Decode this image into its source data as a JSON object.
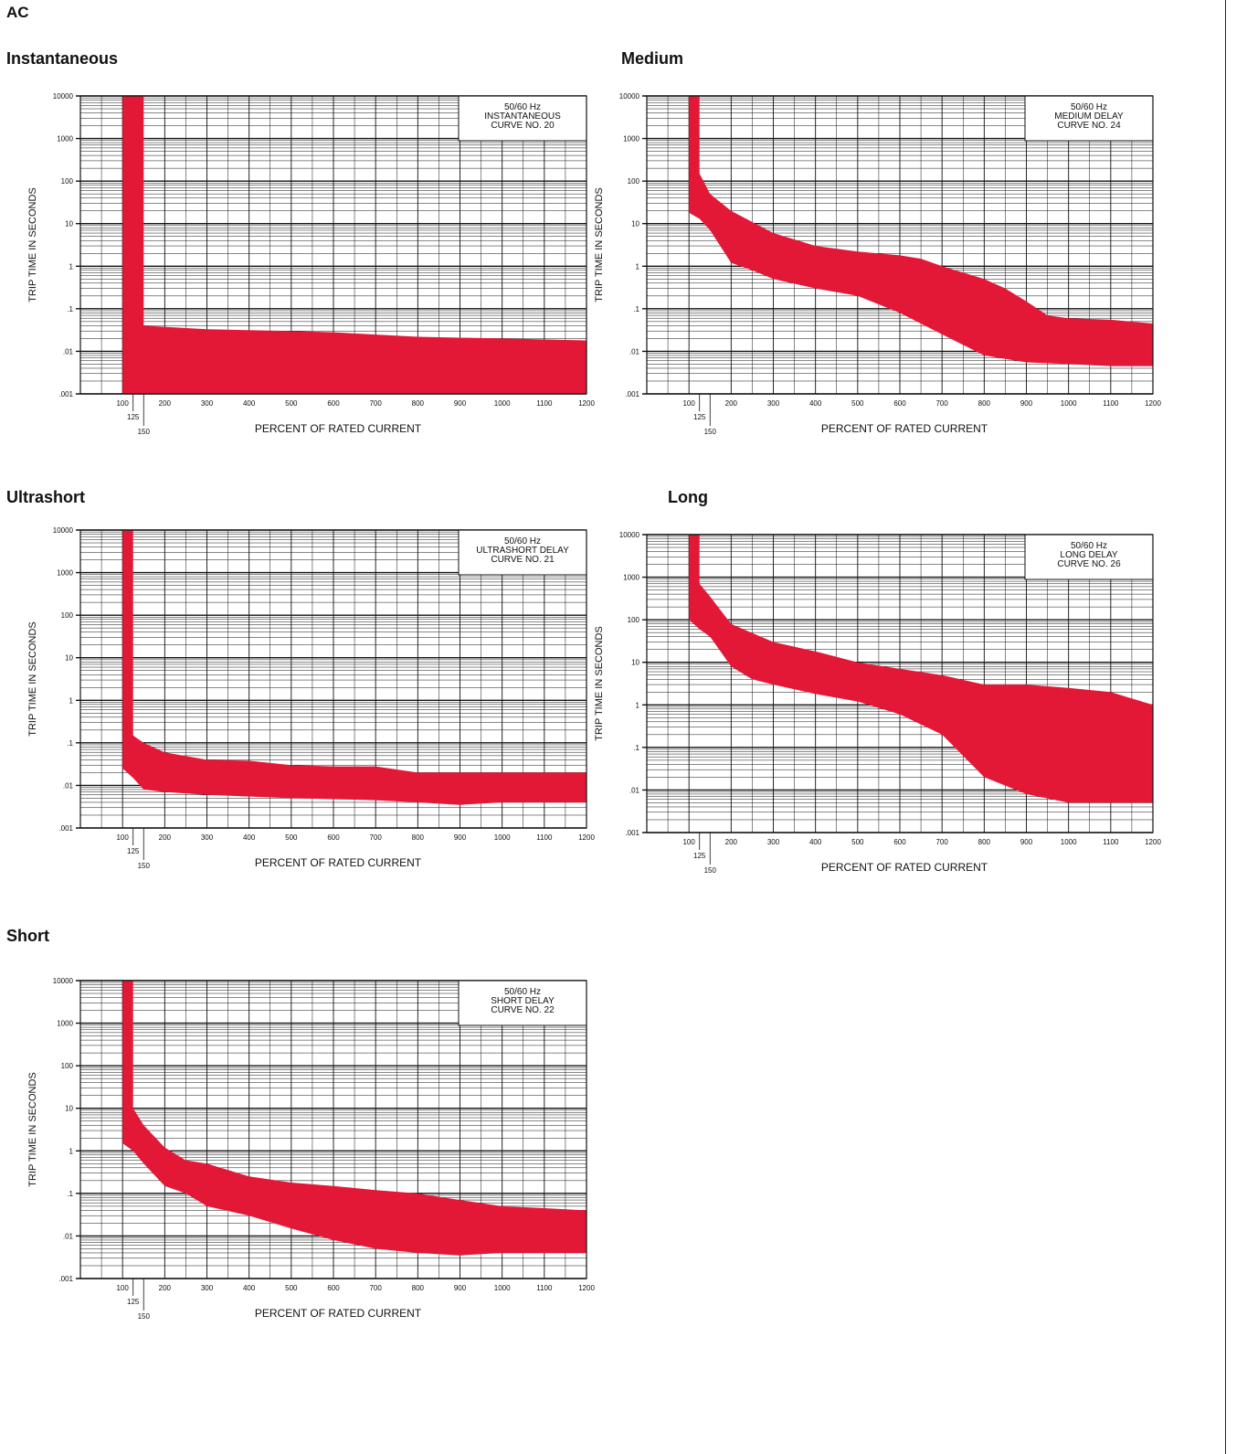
{
  "page": {
    "title": "AC"
  },
  "colors": {
    "band": "#e31837",
    "grid": "#111111",
    "background": "#ffffff"
  },
  "sections": [
    {
      "heading": "Instantaneous"
    },
    {
      "heading": "Medium"
    },
    {
      "heading": "Ultrashort"
    },
    {
      "heading": "Long"
    },
    {
      "heading": "Short"
    }
  ],
  "chart_data": [
    {
      "type": "area",
      "legend_box": [
        "50/60 Hz",
        "INSTANTANEOUS",
        "CURVE NO. 20"
      ],
      "xlabel": "PERCENT OF RATED CURRENT",
      "ylabel": "TRIP TIME IN SECONDS",
      "xlim": [
        0,
        1200
      ],
      "ylim": [
        0.001,
        10000
      ],
      "yscale": "log",
      "x_ticks": [
        "100",
        "125",
        "150",
        "200",
        "300",
        "400",
        "500",
        "600",
        "700",
        "800",
        "900",
        "1000",
        "1100",
        "1200"
      ],
      "y_ticks": [
        "10000",
        "1000",
        "100",
        "10",
        "1",
        ".1",
        ".01",
        ".001"
      ],
      "legend_position": "top-right",
      "grid": true,
      "series": [
        {
          "upper": [
            [
              100,
              10000
            ],
            [
              150,
              10000
            ],
            [
              150,
              0.04
            ],
            [
              300,
              0.033
            ],
            [
              500,
              0.03
            ],
            [
              600,
              0.028
            ],
            [
              800,
              0.022
            ],
            [
              1000,
              0.02
            ],
            [
              1200,
              0.018
            ]
          ],
          "lower": [
            [
              100,
              0.001
            ],
            [
              1200,
              0.001
            ]
          ]
        }
      ]
    },
    {
      "type": "area",
      "legend_box": [
        "50/60 Hz",
        "MEDIUM DELAY",
        "CURVE NO. 24"
      ],
      "xlabel": "PERCENT OF RATED CURRENT",
      "ylabel": "TRIP TIME IN SECONDS",
      "xlim": [
        0,
        1200
      ],
      "ylim": [
        0.001,
        10000
      ],
      "yscale": "log",
      "x_ticks": [
        "100",
        "125",
        "150",
        "200",
        "300",
        "400",
        "500",
        "600",
        "700",
        "800",
        "900",
        "1000",
        "1100",
        "1200"
      ],
      "y_ticks": [
        "10000",
        "1000",
        "100",
        "10",
        "1",
        ".1",
        ".01",
        ".001"
      ],
      "legend_position": "top-right",
      "grid": true,
      "series": [
        {
          "upper": [
            [
              100,
              10000
            ],
            [
              125,
              10000
            ],
            [
              125,
              150
            ],
            [
              150,
              50
            ],
            [
              200,
              20
            ],
            [
              300,
              6
            ],
            [
              400,
              3
            ],
            [
              500,
              2.2
            ],
            [
              600,
              1.8
            ],
            [
              650,
              1.5
            ],
            [
              700,
              1
            ],
            [
              800,
              0.5
            ],
            [
              850,
              0.3
            ],
            [
              900,
              0.15
            ],
            [
              950,
              0.07
            ],
            [
              1000,
              0.06
            ],
            [
              1100,
              0.055
            ],
            [
              1200,
              0.045
            ]
          ],
          "lower": [
            [
              100,
              18
            ],
            [
              125,
              13
            ],
            [
              150,
              7
            ],
            [
              200,
              1.2
            ],
            [
              250,
              0.8
            ],
            [
              300,
              0.5
            ],
            [
              400,
              0.3
            ],
            [
              500,
              0.2
            ],
            [
              600,
              0.08
            ],
            [
              700,
              0.025
            ],
            [
              800,
              0.008
            ],
            [
              900,
              0.0055
            ],
            [
              1000,
              0.005
            ],
            [
              1100,
              0.0045
            ],
            [
              1200,
              0.0045
            ]
          ]
        }
      ]
    },
    {
      "type": "area",
      "legend_box": [
        "50/60 Hz",
        "ULTRASHORT DELAY",
        "CURVE NO. 21"
      ],
      "xlabel": "PERCENT OF RATED CURRENT",
      "ylabel": "TRIP TIME IN SECONDS",
      "xlim": [
        0,
        1200
      ],
      "ylim": [
        0.001,
        10000
      ],
      "yscale": "log",
      "x_ticks": [
        "100",
        "125",
        "150",
        "200",
        "300",
        "400",
        "500",
        "600",
        "700",
        "800",
        "900",
        "1000",
        "1100",
        "1200"
      ],
      "y_ticks": [
        "10000",
        "1000",
        "100",
        "10",
        "1",
        ".1",
        ".01",
        ".001"
      ],
      "legend_position": "top-right",
      "grid": true,
      "series": [
        {
          "upper": [
            [
              100,
              10000
            ],
            [
              125,
              10000
            ],
            [
              125,
              0.15
            ],
            [
              150,
              0.1
            ],
            [
              200,
              0.06
            ],
            [
              300,
              0.04
            ],
            [
              400,
              0.038
            ],
            [
              500,
              0.03
            ],
            [
              600,
              0.028
            ],
            [
              700,
              0.028
            ],
            [
              800,
              0.02
            ],
            [
              900,
              0.02
            ],
            [
              1000,
              0.02
            ],
            [
              1100,
              0.02
            ],
            [
              1200,
              0.02
            ]
          ],
          "lower": [
            [
              100,
              0.025
            ],
            [
              125,
              0.015
            ],
            [
              150,
              0.008
            ],
            [
              200,
              0.007
            ],
            [
              300,
              0.006
            ],
            [
              500,
              0.005
            ],
            [
              700,
              0.0045
            ],
            [
              800,
              0.004
            ],
            [
              900,
              0.0035
            ],
            [
              1000,
              0.004
            ],
            [
              1100,
              0.004
            ],
            [
              1200,
              0.004
            ]
          ]
        }
      ]
    },
    {
      "type": "area",
      "legend_box": [
        "50/60 Hz",
        "LONG DELAY",
        "CURVE NO. 26"
      ],
      "xlabel": "PERCENT OF RATED CURRENT",
      "ylabel": "TRIP TIME IN SECONDS",
      "xlim": [
        0,
        1200
      ],
      "ylim": [
        0.001,
        10000
      ],
      "yscale": "log",
      "x_ticks": [
        "100",
        "125",
        "150",
        "200",
        "300",
        "400",
        "500",
        "600",
        "700",
        "800",
        "900",
        "1000",
        "1100",
        "1200"
      ],
      "y_ticks": [
        "10000",
        "1000",
        "100",
        "10",
        "1",
        ".1",
        ".01",
        ".001"
      ],
      "legend_position": "top-right",
      "grid": true,
      "series": [
        {
          "upper": [
            [
              100,
              10000
            ],
            [
              125,
              10000
            ],
            [
              125,
              700
            ],
            [
              150,
              350
            ],
            [
              200,
              80
            ],
            [
              300,
              30
            ],
            [
              400,
              18
            ],
            [
              500,
              10
            ],
            [
              600,
              7
            ],
            [
              700,
              5
            ],
            [
              800,
              3
            ],
            [
              900,
              3
            ],
            [
              1000,
              2.5
            ],
            [
              1100,
              2
            ],
            [
              1200,
              1
            ]
          ],
          "lower": [
            [
              100,
              100
            ],
            [
              125,
              60
            ],
            [
              150,
              40
            ],
            [
              200,
              8
            ],
            [
              250,
              4
            ],
            [
              300,
              3
            ],
            [
              400,
              1.8
            ],
            [
              500,
              1.2
            ],
            [
              600,
              0.6
            ],
            [
              700,
              0.2
            ],
            [
              800,
              0.02
            ],
            [
              900,
              0.008
            ],
            [
              1000,
              0.005
            ],
            [
              1100,
              0.005
            ],
            [
              1200,
              0.005
            ]
          ]
        }
      ]
    },
    {
      "type": "area",
      "legend_box": [
        "50/60 Hz",
        "SHORT DELAY",
        "CURVE NO. 22"
      ],
      "xlabel": "PERCENT OF RATED CURRENT",
      "ylabel": "TRIP TIME IN SECONDS",
      "xlim": [
        0,
        1200
      ],
      "ylim": [
        0.001,
        10000
      ],
      "yscale": "log",
      "x_ticks": [
        "100",
        "125",
        "150",
        "200",
        "300",
        "400",
        "500",
        "600",
        "700",
        "800",
        "900",
        "1000",
        "1100",
        "1200"
      ],
      "y_ticks": [
        "10000",
        "1000",
        "100",
        "10",
        "1",
        ".1",
        ".01",
        ".001"
      ],
      "legend_position": "top-right",
      "grid": true,
      "series": [
        {
          "upper": [
            [
              100,
              10000
            ],
            [
              125,
              10000
            ],
            [
              125,
              10
            ],
            [
              150,
              4
            ],
            [
              200,
              1.2
            ],
            [
              250,
              0.6
            ],
            [
              300,
              0.5
            ],
            [
              400,
              0.25
            ],
            [
              500,
              0.18
            ],
            [
              600,
              0.15
            ],
            [
              700,
              0.12
            ],
            [
              800,
              0.1
            ],
            [
              900,
              0.07
            ],
            [
              1000,
              0.05
            ],
            [
              1100,
              0.045
            ],
            [
              1200,
              0.04
            ]
          ],
          "lower": [
            [
              100,
              1.5
            ],
            [
              125,
              1
            ],
            [
              150,
              0.5
            ],
            [
              200,
              0.15
            ],
            [
              250,
              0.1
            ],
            [
              300,
              0.05
            ],
            [
              400,
              0.03
            ],
            [
              500,
              0.015
            ],
            [
              600,
              0.008
            ],
            [
              700,
              0.005
            ],
            [
              800,
              0.004
            ],
            [
              900,
              0.0035
            ],
            [
              1000,
              0.004
            ],
            [
              1100,
              0.004
            ],
            [
              1200,
              0.004
            ]
          ]
        }
      ]
    }
  ]
}
